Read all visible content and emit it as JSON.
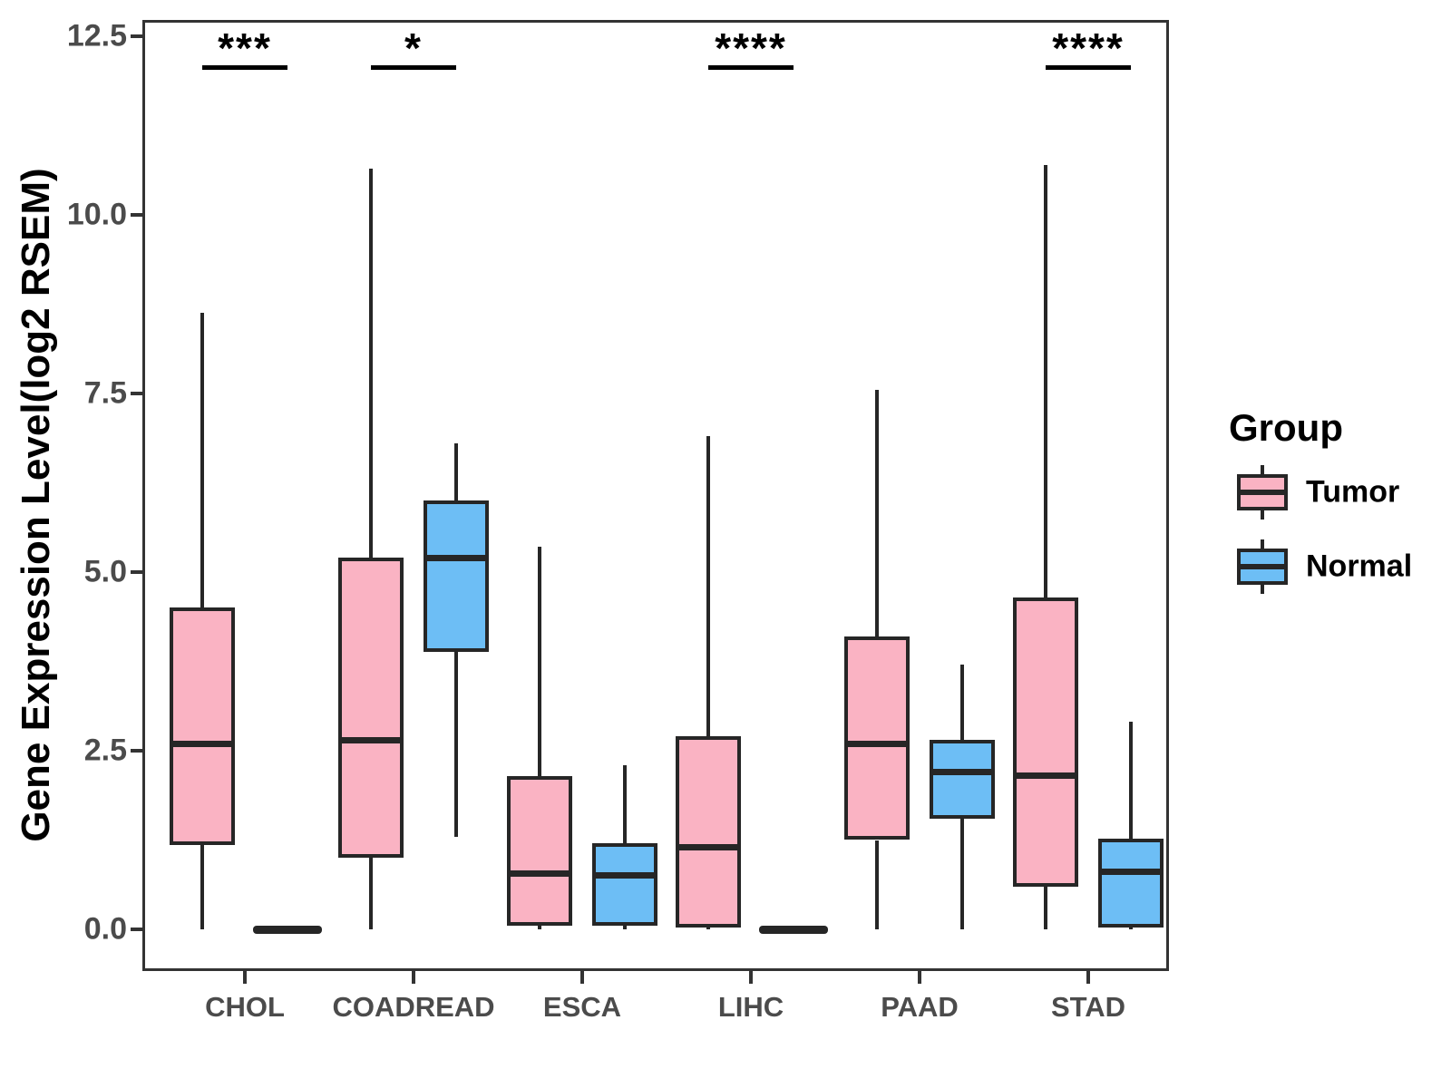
{
  "y_axis": {
    "title": "Gene Expression Level(log2 RSEM)",
    "ticks": [
      {
        "label": "0.0",
        "value": 0
      },
      {
        "label": "2.5",
        "value": 2.5
      },
      {
        "label": "5.0",
        "value": 5
      },
      {
        "label": "7.5",
        "value": 7.5
      },
      {
        "label": "10.0",
        "value": 10
      },
      {
        "label": "12.5",
        "value": 12.5
      }
    ]
  },
  "x_axis": {
    "categories": [
      "CHOL",
      "COADREAD",
      "ESCA",
      "LIHC",
      "PAAD",
      "STAD"
    ]
  },
  "legend": {
    "title": "Group",
    "items": [
      {
        "label": "Tumor",
        "color": "#FAB3C3"
      },
      {
        "label": "Normal",
        "color": "#6DBEF5"
      }
    ]
  },
  "colors": {
    "tumor_fill": "#FAB3C3",
    "normal_fill": "#6DBEF5",
    "stroke": "#262626",
    "axis_text": "#4B4B4B",
    "axis_line": "#333333",
    "significance": "#000000"
  },
  "chart_data": {
    "type": "boxplot",
    "title": "",
    "xlabel": "",
    "ylabel": "Gene Expression Level(log2 RSEM)",
    "ylim": [
      0,
      12.5
    ],
    "grid": false,
    "legend_position": "right",
    "categories": [
      "CHOL",
      "COADREAD",
      "ESCA",
      "LIHC",
      "PAAD",
      "STAD"
    ],
    "series": [
      {
        "name": "Tumor",
        "color": "#FAB3C3",
        "boxes": [
          {
            "category": "CHOL",
            "min": 0,
            "q1": 1.18,
            "median": 2.6,
            "q3": 4.5,
            "max": 8.63
          },
          {
            "category": "COADREAD",
            "min": 0,
            "q1": 1.0,
            "median": 2.65,
            "q3": 5.2,
            "max": 10.65
          },
          {
            "category": "ESCA",
            "min": 0,
            "q1": 0.05,
            "median": 0.78,
            "q3": 2.15,
            "max": 5.35
          },
          {
            "category": "LIHC",
            "min": 0,
            "q1": 0.03,
            "median": 1.15,
            "q3": 2.7,
            "max": 6.9
          },
          {
            "category": "PAAD",
            "min": 0,
            "q1": 1.25,
            "median": 2.6,
            "q3": 4.1,
            "max": 7.55
          },
          {
            "category": "STAD",
            "min": 0,
            "q1": 0.6,
            "median": 2.15,
            "q3": 4.65,
            "max": 10.7
          }
        ]
      },
      {
        "name": "Normal",
        "color": "#6DBEF5",
        "boxes": [
          {
            "category": "CHOL",
            "min": 0,
            "q1": 0,
            "median": 0,
            "q3": 0,
            "max": 0
          },
          {
            "category": "COADREAD",
            "min": 1.3,
            "q1": 3.88,
            "median": 5.2,
            "q3": 6.0,
            "max": 6.8
          },
          {
            "category": "ESCA",
            "min": 0,
            "q1": 0.05,
            "median": 0.75,
            "q3": 1.2,
            "max": 2.3
          },
          {
            "category": "LIHC",
            "min": 0,
            "q1": 0,
            "median": 0,
            "q3": 0,
            "max": 0
          },
          {
            "category": "PAAD",
            "min": 0,
            "q1": 1.55,
            "median": 2.2,
            "q3": 2.65,
            "max": 3.7
          },
          {
            "category": "STAD",
            "min": 0,
            "q1": 0.02,
            "median": 0.8,
            "q3": 1.27,
            "max": 2.9
          }
        ]
      }
    ],
    "significance": [
      {
        "category": "CHOL",
        "label": "***"
      },
      {
        "category": "COADREAD",
        "label": "*"
      },
      {
        "category": "LIHC",
        "label": "****"
      },
      {
        "category": "STAD",
        "label": "****"
      }
    ]
  }
}
